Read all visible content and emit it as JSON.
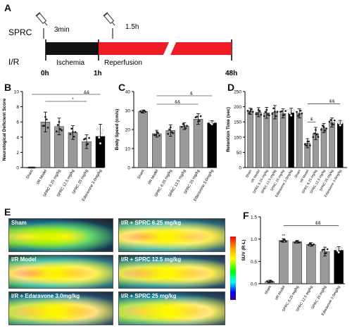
{
  "panels": {
    "a": "A",
    "b": "B",
    "c": "C",
    "d": "D",
    "e": "E",
    "f": "F"
  },
  "timeline": {
    "sprc_label": "SPRC",
    "ir_label": "I/R",
    "dose1_time": "3min",
    "dose2_time": "1.5h",
    "ischemia": "Ischemia",
    "reperfusion": "Reperfusion",
    "t0": "0h",
    "t1": "1h",
    "t2": "48h",
    "colors": {
      "ischemia": "#111111",
      "reperfusion": "#ee1c24"
    }
  },
  "chart_data": [
    {
      "id": "b",
      "type": "bar",
      "ylabel": "Neurological Deficient Score",
      "ylim": [
        0,
        10
      ],
      "yticks": [
        "0",
        "2",
        "4",
        "6",
        "8",
        "10"
      ],
      "categories": [
        "Sham",
        "I/R Model",
        "SPRC 6.25 mg/kg",
        "SPRC 12.5 mg/kg",
        "SPRC 25 mg/kg",
        "Edaravone 3.0mg/kg"
      ],
      "values": [
        0,
        6.0,
        5.4,
        4.6,
        3.4,
        4.1
      ],
      "errors": [
        0,
        1.3,
        1.1,
        0.9,
        0.9,
        1.6
      ],
      "colors": [
        "#9a9a9a",
        "#9a9a9a",
        "#9a9a9a",
        "#9a9a9a",
        "#9a9a9a",
        "#000000"
      ],
      "annotations": [
        "*",
        "&&"
      ]
    },
    {
      "id": "c",
      "type": "bar",
      "ylabel": "Body Speed (cm/s)",
      "ylim": [
        0,
        40
      ],
      "yticks": [
        "0",
        "10",
        "20",
        "30",
        "40"
      ],
      "categories": [
        "Sham",
        "I/R Model",
        "SPRC 6.25 mg/kg",
        "SPRC 12.5 mg/kg",
        "SPRC 25 mg/kg",
        "Edaravone 3.0mg/kg"
      ],
      "values": [
        29.5,
        17.8,
        19.5,
        21.8,
        25.5,
        23.5
      ],
      "errors": [
        0.8,
        1.8,
        3.0,
        1.8,
        2.8,
        1.2
      ],
      "colors": [
        "#9a9a9a",
        "#9a9a9a",
        "#9a9a9a",
        "#9a9a9a",
        "#9a9a9a",
        "#000000"
      ],
      "annotations": [
        "&&",
        "&"
      ]
    },
    {
      "id": "d",
      "type": "bar",
      "ylabel": "Retention Time (sec)",
      "ylim": [
        0,
        250
      ],
      "yticks": [
        "0",
        "50",
        "100",
        "150",
        "200",
        "250"
      ],
      "categories": [
        "Sham",
        "I/R Model",
        "SPRC 6.25 mg/kg",
        "SPRC 12.5 mg/kg",
        "SPRC 25 mg/kg",
        "Edaravone 3.0mg/kg",
        "Sham",
        "I/R Model",
        "SPRC 6.25 mg/kg",
        "SPRC 12.5 mg/kg",
        "SPRC 25 mg/kg",
        "Edaravone 3.0mg/kg"
      ],
      "values": [
        185,
        182,
        180,
        182,
        178,
        180,
        178,
        80,
        112,
        130,
        148,
        145
      ],
      "errors": [
        10,
        15,
        18,
        22,
        15,
        15,
        15,
        15,
        20,
        15,
        15,
        10
      ],
      "colors": [
        "#9a9a9a",
        "#9a9a9a",
        "#9a9a9a",
        "#9a9a9a",
        "#9a9a9a",
        "#000000",
        "#9a9a9a",
        "#9a9a9a",
        "#9a9a9a",
        "#9a9a9a",
        "#9a9a9a",
        "#000000"
      ],
      "annotations": [
        "&",
        "&&"
      ]
    },
    {
      "id": "f",
      "type": "bar",
      "ylabel": "SUV (R-L)",
      "ylim": [
        0,
        1.5
      ],
      "yticks": [
        "0.0",
        "0.5",
        "1.0",
        "1.5"
      ],
      "categories": [
        "Sham",
        "I/R Model",
        "SPRC 6.25 mg/kg",
        "SPRC 12.5 mg/kg",
        "SPRC 25 mg/kg",
        "Edaravone 3.0mg/kg"
      ],
      "values": [
        0.05,
        0.97,
        0.94,
        0.88,
        0.72,
        0.75
      ],
      "errors": [
        0.03,
        0.04,
        0.03,
        0.04,
        0.1,
        0.08
      ],
      "colors": [
        "#9a9a9a",
        "#9a9a9a",
        "#9a9a9a",
        "#9a9a9a",
        "#9a9a9a",
        "#000000"
      ],
      "annotations": [
        "**",
        "&&"
      ]
    }
  ],
  "pet": {
    "left": [
      "Sham",
      "I/R Model",
      "I/R + Edaravone 3.0mg/kg"
    ],
    "right": [
      "I/R + SPRC 6.25 mg/kg",
      "I/R + SPRC 12.5 mg/kg",
      "I/R + SPRC 25 mg/kg"
    ]
  }
}
